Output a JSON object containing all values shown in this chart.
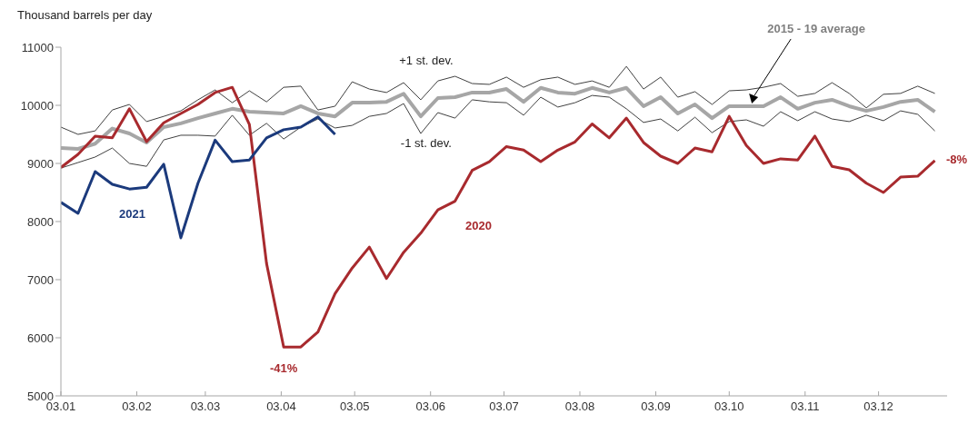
{
  "chart_data": {
    "type": "line",
    "ylabel": "Thousand barrels per day",
    "x": [
      "--01-03",
      "--01-10",
      "--01-17",
      "--01-24",
      "--01-31",
      "--02-07",
      "--02-14",
      "--02-21",
      "--02-28",
      "--03-07",
      "--03-14",
      "--03-21",
      "--03-28",
      "--04-04",
      "--04-11",
      "--04-18",
      "--04-25",
      "--05-02",
      "--05-09",
      "--05-16",
      "--05-23",
      "--05-30",
      "--06-06",
      "--06-13",
      "--06-20",
      "--06-27",
      "--07-04",
      "--07-11",
      "--07-18",
      "--07-25",
      "--08-01",
      "--08-08",
      "--08-15",
      "--08-22",
      "--08-29",
      "--09-05",
      "--09-12",
      "--09-19",
      "--09-26",
      "--10-03",
      "--10-10",
      "--10-17",
      "--10-24",
      "--10-31",
      "--11-07",
      "--11-14",
      "--11-21",
      "--11-28",
      "--12-05",
      "--12-12",
      "--12-19",
      "--12-26"
    ],
    "series": [
      {
        "name": "+1 st. dev.",
        "color": "#404040",
        "values": [
          9625,
          9500,
          9560,
          9920,
          10015,
          9720,
          9810,
          9905,
          10095,
          10265,
          10045,
          10250,
          10060,
          10310,
          10330,
          9920,
          9985,
          10405,
          10280,
          10220,
          10390,
          10095,
          10420,
          10500,
          10375,
          10360,
          10485,
          10310,
          10440,
          10485,
          10360,
          10420,
          10310,
          10670,
          10280,
          10485,
          10140,
          10235,
          10015,
          10250,
          10265,
          10310,
          10375,
          10155,
          10205,
          10390,
          10205,
          9955,
          10190,
          10205,
          10330,
          10205
        ]
      },
      {
        "name": "-1 st. dev.",
        "color": "#404040",
        "values": [
          8920,
          9015,
          9110,
          9265,
          9000,
          8950,
          9405,
          9485,
          9485,
          9470,
          9830,
          9485,
          9690,
          9420,
          9625,
          9765,
          9610,
          9655,
          9810,
          9860,
          10030,
          9515,
          9875,
          9780,
          10095,
          10060,
          10045,
          9830,
          10140,
          9970,
          10045,
          10170,
          10140,
          9940,
          9705,
          9765,
          9560,
          9795,
          9530,
          9720,
          9750,
          9640,
          9890,
          9735,
          9890,
          9765,
          9720,
          9830,
          9735,
          9905,
          9845,
          9560
        ]
      },
      {
        "name": "2015 - 19 average",
        "color": "#a6a6a6",
        "values": [
          9265,
          9250,
          9340,
          9600,
          9515,
          9360,
          9625,
          9690,
          9780,
          9860,
          9940,
          9890,
          9875,
          9860,
          9985,
          9860,
          9810,
          10045,
          10045,
          10060,
          10200,
          9810,
          10125,
          10140,
          10220,
          10220,
          10280,
          10060,
          10300,
          10220,
          10200,
          10300,
          10220,
          10300,
          9985,
          10140,
          9860,
          10015,
          9780,
          9985,
          9985,
          9985,
          10140,
          9940,
          10045,
          10095,
          9985,
          9905,
          9970,
          10060,
          10095,
          9890
        ]
      },
      {
        "name": "2020",
        "color": "#a82a2e",
        "values": [
          8930,
          9156,
          9470,
          9440,
          9940,
          9375,
          9700,
          9860,
          10015,
          10220,
          10310,
          9670,
          7280,
          5840,
          5840,
          6100,
          6760,
          7200,
          7560,
          7020,
          7470,
          7800,
          8200,
          8350,
          8880,
          9030,
          9290,
          9230,
          9030,
          9230,
          9370,
          9680,
          9440,
          9780,
          9360,
          9125,
          9000,
          9265,
          9200,
          9810,
          9310,
          9000,
          9080,
          9060,
          9470,
          8950,
          8890,
          8660,
          8500,
          8765,
          8780,
          9050
        ]
      },
      {
        "name": "2021",
        "color": "#1b3a7c",
        "x": [
          "--01-03",
          "--01-10",
          "--01-17",
          "--01-24",
          "--01-31",
          "--02-07",
          "--02-14",
          "--02-21",
          "--02-28",
          "--03-07",
          "--03-14",
          "--03-21",
          "--03-28",
          "--04-04",
          "--04-11",
          "--04-18",
          "--04-25"
        ],
        "values": [
          8330,
          8140,
          8860,
          8640,
          8560,
          8590,
          8985,
          7720,
          8660,
          9400,
          9030,
          9060,
          9440,
          9580,
          9625,
          9800,
          9500
        ]
      }
    ],
    "xlim": [
      "--01-03",
      "--12-31"
    ],
    "xticks": [
      {
        "value": "--01-03",
        "label": "03.01"
      },
      {
        "value": "--02-03",
        "label": "03.02"
      },
      {
        "value": "--03-03",
        "label": "03.03"
      },
      {
        "value": "--04-03",
        "label": "03.04"
      },
      {
        "value": "--05-03",
        "label": "03.05"
      },
      {
        "value": "--06-03",
        "label": "03.06"
      },
      {
        "value": "--07-03",
        "label": "03.07"
      },
      {
        "value": "--08-03",
        "label": "03.08"
      },
      {
        "value": "--09-03",
        "label": "03.09"
      },
      {
        "value": "--10-03",
        "label": "03.10"
      },
      {
        "value": "--11-03",
        "label": "03.11"
      },
      {
        "value": "--12-03",
        "label": "03.12"
      }
    ],
    "ylim": [
      5000,
      11000
    ],
    "yticks": [
      5000,
      6000,
      7000,
      8000,
      9000,
      10000,
      11000
    ],
    "annotations": [
      {
        "text": "-41%",
        "x": "--04-04",
        "y": 5840
      },
      {
        "text": "-8%",
        "x": "--12-26",
        "y": 9050
      }
    ],
    "grid": false,
    "legend": false
  }
}
